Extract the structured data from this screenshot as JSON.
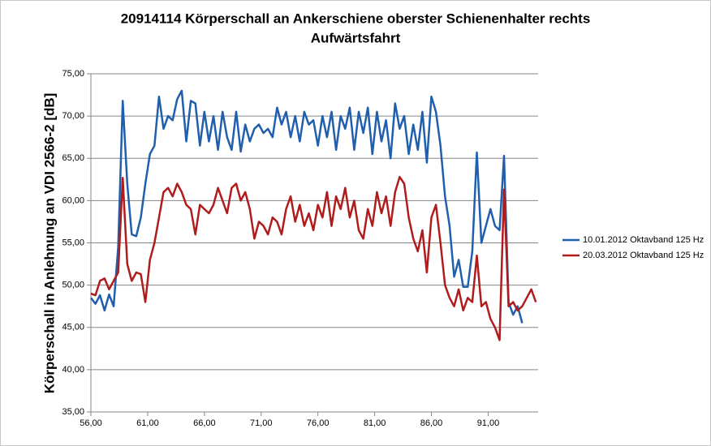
{
  "chart_data": {
    "type": "line",
    "title": "20914114 Körperschall an Ankerschiene oberster Schienenhalter rechts",
    "subtitle": "Aufwärtsfahrt",
    "y_label": "Körperschall in Anlehnung an VDI 2566-2 [dB]",
    "x": [
      56.0,
      56.4,
      56.8,
      57.2,
      57.6,
      58.0,
      58.4,
      58.8,
      59.2,
      59.6,
      60.0,
      60.4,
      60.8,
      61.2,
      61.6,
      62.0,
      62.4,
      62.8,
      63.2,
      63.6,
      64.0,
      64.4,
      64.8,
      65.2,
      65.6,
      66.0,
      66.4,
      66.8,
      67.2,
      67.6,
      68.0,
      68.4,
      68.8,
      69.2,
      69.6,
      70.0,
      70.4,
      70.8,
      71.2,
      71.6,
      72.0,
      72.4,
      72.8,
      73.2,
      73.6,
      74.0,
      74.4,
      74.8,
      75.2,
      75.6,
      76.0,
      76.4,
      76.8,
      77.2,
      77.6,
      78.0,
      78.4,
      78.8,
      79.2,
      79.6,
      80.0,
      80.4,
      80.8,
      81.2,
      81.6,
      82.0,
      82.4,
      82.8,
      83.2,
      83.6,
      84.0,
      84.4,
      84.8,
      85.2,
      85.6,
      86.0,
      86.4,
      86.8,
      87.2,
      87.6,
      88.0,
      88.4,
      88.8,
      89.2,
      89.6,
      90.0,
      90.4,
      90.8,
      91.2,
      91.6,
      92.0,
      92.4,
      92.8,
      93.2,
      93.6,
      94.0,
      94.4,
      94.8,
      95.2
    ],
    "series": [
      {
        "name": "10.01.2012 Oktavband 125 Hz",
        "color": "#1f5fad",
        "values": [
          48.5,
          47.8,
          48.8,
          47.0,
          48.9,
          47.5,
          54.5,
          71.8,
          62.0,
          56.0,
          55.8,
          58.0,
          62.0,
          65.5,
          66.5,
          72.3,
          68.5,
          70.0,
          69.5,
          72.0,
          73.0,
          67.0,
          71.8,
          71.5,
          66.5,
          70.5,
          67.0,
          70.0,
          66.0,
          70.5,
          67.5,
          66.0,
          70.5,
          65.8,
          69.0,
          67.0,
          68.5,
          69.0,
          68.0,
          68.5,
          67.5,
          71.0,
          69.0,
          70.5,
          67.5,
          70.0,
          67.0,
          70.5,
          69.0,
          69.5,
          66.5,
          70.0,
          67.5,
          70.5,
          66.0,
          70.0,
          68.5,
          71.0,
          66.0,
          70.5,
          68.0,
          71.0,
          65.5,
          70.5,
          67.0,
          69.5,
          65.0,
          71.5,
          68.5,
          70.0,
          65.5,
          69.0,
          66.0,
          70.5,
          64.5,
          72.3,
          70.5,
          66.5,
          60.5,
          57.0,
          51.0,
          53.0,
          49.8,
          49.8,
          54.0,
          65.7,
          55.0,
          57.0,
          59.0,
          57.0,
          56.5,
          65.3,
          48.0,
          46.5,
          47.5,
          45.5,
          null,
          null,
          null
        ]
      },
      {
        "name": "20.03.2012 Oktavband 125 Hz",
        "color": "#b01c1c",
        "values": [
          49.0,
          48.8,
          50.5,
          50.8,
          49.5,
          50.5,
          51.5,
          62.7,
          52.5,
          50.5,
          51.5,
          51.3,
          48.0,
          53.0,
          55.0,
          58.0,
          61.0,
          61.5,
          60.5,
          62.0,
          61.0,
          59.5,
          59.0,
          56.0,
          59.5,
          59.0,
          58.5,
          59.5,
          61.5,
          60.0,
          58.5,
          61.5,
          62.0,
          60.0,
          61.0,
          59.0,
          55.5,
          57.5,
          57.0,
          56.0,
          58.0,
          57.5,
          56.0,
          59.0,
          60.5,
          57.5,
          59.5,
          57.0,
          58.5,
          56.5,
          59.5,
          58.0,
          61.0,
          57.0,
          60.5,
          59.0,
          61.5,
          58.0,
          60.0,
          56.5,
          55.5,
          59.0,
          57.0,
          61.0,
          58.5,
          60.5,
          57.0,
          61.0,
          62.8,
          62.0,
          58.0,
          55.5,
          54.0,
          56.5,
          51.5,
          58.0,
          59.5,
          55.0,
          50.0,
          48.5,
          47.5,
          49.5,
          47.0,
          48.5,
          48.0,
          53.5,
          47.5,
          48.0,
          46.0,
          45.0,
          43.5,
          61.3,
          47.5,
          48.0,
          47.0,
          47.5,
          48.5,
          49.5,
          48.0
        ]
      }
    ],
    "xlim": [
      56,
      95.4
    ],
    "ylim": [
      35,
      75
    ],
    "xticks": [
      {
        "value": 56,
        "label": "56,00"
      },
      {
        "value": 61,
        "label": "61,00"
      },
      {
        "value": 66,
        "label": "66,00"
      },
      {
        "value": 71,
        "label": "71,00"
      },
      {
        "value": 76,
        "label": "76,00"
      },
      {
        "value": 81,
        "label": "81,00"
      },
      {
        "value": 86,
        "label": "86,00"
      },
      {
        "value": 91,
        "label": "91,00"
      }
    ],
    "yticks": [
      {
        "value": 35,
        "label": "35,00"
      },
      {
        "value": 40,
        "label": "40,00"
      },
      {
        "value": 45,
        "label": "45,00"
      },
      {
        "value": 50,
        "label": "50,00"
      },
      {
        "value": 55,
        "label": "55,00"
      },
      {
        "value": 60,
        "label": "60,00"
      },
      {
        "value": 65,
        "label": "65,00"
      },
      {
        "value": 70,
        "label": "70,00"
      },
      {
        "value": 75,
        "label": "75,00"
      }
    ],
    "grid": true,
    "legend": "right"
  }
}
